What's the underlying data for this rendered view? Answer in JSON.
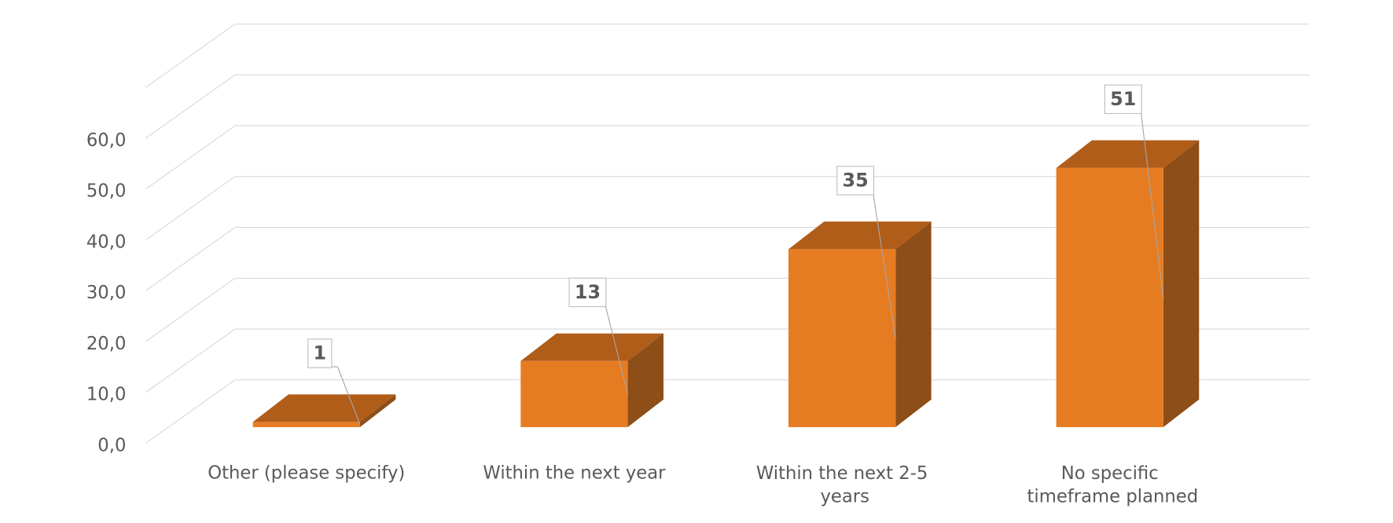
{
  "chart_data": {
    "type": "bar3d",
    "categories": [
      "Other (please specify)",
      "Within the next year",
      "Within the next 2-5 years",
      "No specific timeframe planned"
    ],
    "values": [
      1,
      13,
      35,
      51
    ],
    "colors": {
      "front": "#e67c22",
      "top": "#b05d1a",
      "side": "#8e4e17"
    },
    "ylim": [
      0,
      70
    ],
    "yticks": [
      {
        "value": 0,
        "label": "0,0"
      },
      {
        "value": 10,
        "label": "10,0"
      },
      {
        "value": 20,
        "label": "20,0"
      },
      {
        "value": 30,
        "label": "30,0"
      },
      {
        "value": 40,
        "label": "40,0"
      },
      {
        "value": 50,
        "label": "50,0"
      },
      {
        "value": 60,
        "label": "60,0"
      }
    ],
    "grid": true
  }
}
